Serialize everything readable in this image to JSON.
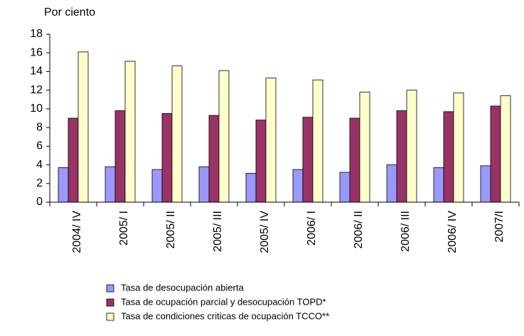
{
  "chart_data": {
    "type": "bar",
    "y_label": "Por ciento",
    "categories": [
      "2004/ IV",
      "2005/ I",
      "2005/ II",
      "2005/ III",
      "2005/ IV",
      "2006/ I",
      "2006/ II",
      "2006/ III",
      "2006/ IV",
      "2007/I"
    ],
    "series": [
      {
        "name": "Tasa de desocupación abierta",
        "color": "#9999ff",
        "values": [
          3.7,
          3.8,
          3.5,
          3.8,
          3.1,
          3.5,
          3.2,
          4.0,
          3.7,
          3.9
        ]
      },
      {
        "name": "Tasa de ocupación parcial y desocupación TOPD*",
        "color": "#993366",
        "values": [
          9.0,
          9.8,
          9.5,
          9.3,
          8.8,
          9.1,
          9.0,
          9.8,
          9.7,
          10.3
        ]
      },
      {
        "name": "Tasa de condiciones criticas de ocupación  TCCO**",
        "color": "#ffffcc",
        "values": [
          16.1,
          15.1,
          14.6,
          14.1,
          13.3,
          13.1,
          11.8,
          12.0,
          11.7,
          11.4
        ]
      }
    ],
    "ylim": [
      0,
      18
    ],
    "yticks": [
      0,
      2,
      4,
      6,
      8,
      10,
      12,
      14,
      16,
      18
    ],
    "grid": false
  }
}
